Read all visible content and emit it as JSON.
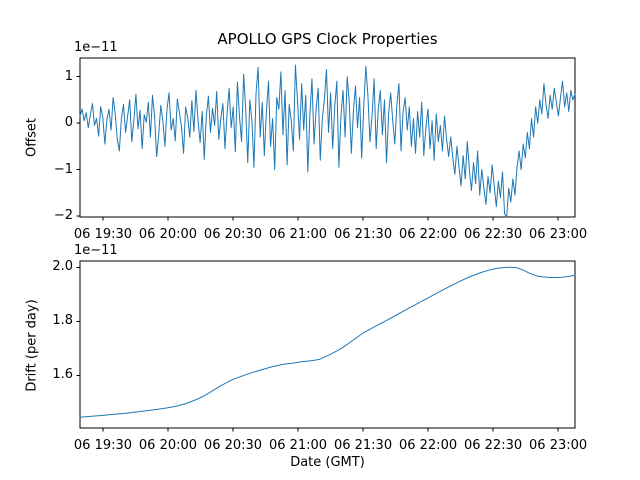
{
  "figure": {
    "title": "APOLLO GPS Clock Properties",
    "background": "#ffffff",
    "line_color": "#1f77b4",
    "spine_color": "#000000"
  },
  "chart_data": [
    {
      "type": "line",
      "name": "offset-vs-time",
      "title": "APOLLO GPS Clock Properties",
      "ylabel": "Offset",
      "offset_text": "1e−11",
      "unit_multiplier": "1e-11",
      "legend": "none",
      "grid": false,
      "x_ticklabels": [
        "06 19:30",
        "06 20:00",
        "06 20:30",
        "06 21:00",
        "06 21:30",
        "06 22:00",
        "06 22:30",
        "06 23:00"
      ],
      "x_tick_minutes": [
        1170,
        1200,
        1230,
        1260,
        1290,
        1320,
        1350,
        1380
      ],
      "xlim_minutes": [
        1159.4,
        1387.8
      ],
      "y_ticklabels": [
        "1",
        "0",
        "−1",
        "−2"
      ],
      "y_tick_values": [
        1,
        0,
        -1,
        -2
      ],
      "ylim": [
        -2.02,
        1.4
      ],
      "values": [
        0.15,
        0.3,
        0.05,
        0.22,
        -0.1,
        0.18,
        0.42,
        -0.05,
        0.1,
        -0.28,
        0.35,
        0.12,
        -0.45,
        0.08,
        0.3,
        -0.15,
        0.55,
        0.2,
        -0.35,
        -0.6,
        0.1,
        0.4,
        -0.2,
        0.15,
        0.5,
        -0.4,
        0.05,
        0.62,
        -0.12,
        0.28,
        -0.55,
        0.18,
        0.02,
        0.45,
        -0.3,
        0.6,
        0.15,
        -0.72,
        -0.25,
        0.38,
        0.05,
        -0.5,
        0.3,
        0.65,
        -0.15,
        0.1,
        -0.38,
        0.52,
        0.22,
        -0.08,
        -0.65,
        0.35,
        0.12,
        -0.3,
        0.48,
        -0.18,
        0.7,
        0.05,
        -0.42,
        0.25,
        -0.78,
        0.15,
        0.58,
        -0.2,
        0.32,
        -0.05,
        0.68,
        -0.35,
        0.1,
        0.42,
        -0.55,
        0.2,
        0.75,
        -0.1,
        0.35,
        -0.62,
        0.88,
        0.15,
        -0.4,
        1.05,
        0.3,
        -0.85,
        0.5,
        0.05,
        -0.95,
        0.65,
        1.2,
        -0.3,
        0.45,
        -0.7,
        0.25,
        0.9,
        -0.5,
        0.1,
        -1.0,
        0.55,
        0.3,
        1.1,
        -0.25,
        0.7,
        -0.9,
        0.4,
        0.05,
        -0.6,
        1.25,
        0.5,
        -0.35,
        0.85,
        -0.15,
        0.6,
        -1.05,
        0.2,
        0.95,
        -0.45,
        0.3,
        0.75,
        -0.8,
        0.1,
        0.5,
        1.15,
        -0.2,
        0.65,
        -0.55,
        0.35,
        0.9,
        -0.95,
        0.15,
        0.7,
        -0.3,
        1.0,
        0.45,
        -0.65,
        0.25,
        0.8,
        -0.1,
        0.55,
        -0.75,
        0.35,
        1.22,
        0.6,
        -0.4,
        0.15,
        0.95,
        -0.55,
        0.3,
        0.7,
        -0.25,
        0.5,
        -0.85,
        0.2,
        0.65,
        0.05,
        -0.45,
        0.4,
        0.85,
        -0.6,
        0.25,
        0.55,
        -0.15,
        0.35,
        -0.5,
        0.1,
        -0.65,
        0.25,
        -0.3,
        0.45,
        -0.7,
        -0.1,
        0.3,
        -0.55,
        0.05,
        -0.8,
        0.2,
        -0.4,
        -0.05,
        -0.6,
        0.15,
        -0.35,
        -0.72,
        -0.3,
        -0.75,
        -1.1,
        -0.5,
        -0.95,
        -1.35,
        -0.7,
        -1.2,
        -0.4,
        -1.0,
        -1.45,
        -0.85,
        -1.3,
        -0.6,
        -1.55,
        -1.0,
        -1.4,
        -1.75,
        -1.15,
        -1.5,
        -0.9,
        -1.35,
        -1.8,
        -1.25,
        -1.6,
        -1.05,
        -1.95,
        -2.02,
        -1.4,
        -1.7,
        -1.2,
        -1.55,
        -0.95,
        -0.6,
        -1.0,
        -0.45,
        -0.75,
        -0.2,
        -0.55,
        0.1,
        -0.3,
        0.35,
        0.0,
        0.5,
        0.2,
        0.85,
        0.4,
        0.1,
        0.6,
        0.3,
        0.75,
        0.45,
        0.15,
        0.55,
        0.9,
        0.35,
        0.65,
        0.25,
        0.7,
        0.5,
        0.62
      ]
    },
    {
      "type": "line",
      "name": "drift-vs-time",
      "ylabel": "Drift (per day)",
      "xlabel": "Date (GMT)",
      "offset_text": "1e−11",
      "unit_multiplier": "1e-11",
      "legend": "none",
      "grid": false,
      "x_ticklabels": [
        "06 19:30",
        "06 20:00",
        "06 20:30",
        "06 21:00",
        "06 21:30",
        "06 22:00",
        "06 22:30",
        "06 23:00"
      ],
      "x_tick_minutes": [
        1170,
        1200,
        1230,
        1260,
        1290,
        1320,
        1350,
        1380
      ],
      "xlim_minutes": [
        1159.4,
        1387.8
      ],
      "y_ticklabels": [
        "2.0",
        "1.8",
        "1.6"
      ],
      "y_tick_values": [
        2.0,
        1.8,
        1.6
      ],
      "ylim": [
        1.405,
        2.024
      ],
      "points": [
        [
          1159.4,
          1.445
        ],
        [
          1164,
          1.448
        ],
        [
          1170,
          1.452
        ],
        [
          1175,
          1.456
        ],
        [
          1180,
          1.459
        ],
        [
          1185,
          1.464
        ],
        [
          1190,
          1.469
        ],
        [
          1195,
          1.474
        ],
        [
          1200,
          1.48
        ],
        [
          1204,
          1.486
        ],
        [
          1208,
          1.495
        ],
        [
          1212,
          1.507
        ],
        [
          1216,
          1.521
        ],
        [
          1220,
          1.54
        ],
        [
          1224,
          1.56
        ],
        [
          1227,
          1.573
        ],
        [
          1230,
          1.585
        ],
        [
          1236,
          1.603
        ],
        [
          1242,
          1.618
        ],
        [
          1248,
          1.632
        ],
        [
          1253,
          1.641
        ],
        [
          1258,
          1.646
        ],
        [
          1262,
          1.651
        ],
        [
          1267,
          1.655
        ],
        [
          1270,
          1.66
        ],
        [
          1275,
          1.678
        ],
        [
          1280,
          1.7
        ],
        [
          1285,
          1.728
        ],
        [
          1290,
          1.757
        ],
        [
          1295,
          1.779
        ],
        [
          1300,
          1.8
        ],
        [
          1305,
          1.822
        ],
        [
          1310,
          1.844
        ],
        [
          1315,
          1.866
        ],
        [
          1320,
          1.887
        ],
        [
          1325,
          1.909
        ],
        [
          1330,
          1.93
        ],
        [
          1335,
          1.95
        ],
        [
          1340,
          1.968
        ],
        [
          1344,
          1.98
        ],
        [
          1348,
          1.99
        ],
        [
          1352,
          1.997
        ],
        [
          1355,
          2.0
        ],
        [
          1358,
          2.001
        ],
        [
          1361,
          1.999
        ],
        [
          1364,
          1.99
        ],
        [
          1367,
          1.978
        ],
        [
          1370,
          1.969
        ],
        [
          1373,
          1.965
        ],
        [
          1376,
          1.963
        ],
        [
          1379,
          1.963
        ],
        [
          1382,
          1.964
        ],
        [
          1385,
          1.967
        ],
        [
          1387.8,
          1.971
        ]
      ]
    }
  ]
}
